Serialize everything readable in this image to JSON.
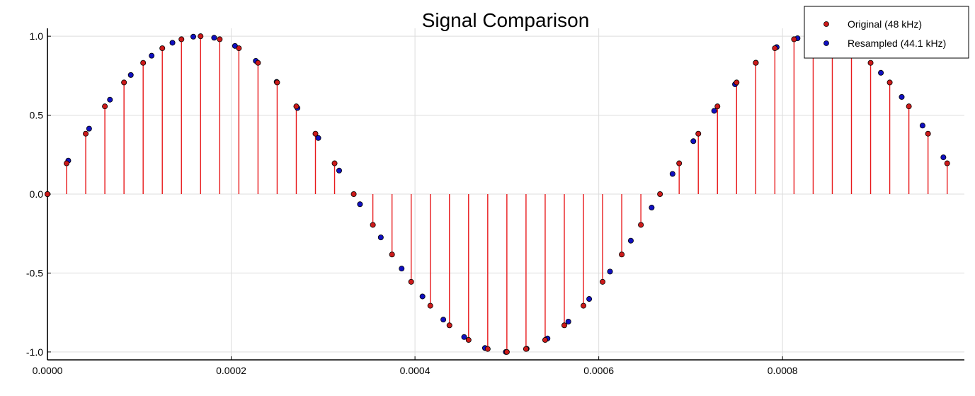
{
  "chart_data": {
    "type": "scatter",
    "title": "Signal Comparison",
    "xlabel": "",
    "ylabel": "",
    "xlim": [
      0,
      0.0009979
    ],
    "ylim": [
      -1.05,
      1.05
    ],
    "x_ticks": [
      0.0,
      0.0002,
      0.0004,
      0.0006,
      0.0008
    ],
    "x_tick_labels": [
      "0.0000",
      "0.0002",
      "0.0004",
      "0.0006",
      "0.0008"
    ],
    "y_ticks": [
      -1.0,
      -0.5,
      0.0,
      0.5,
      1.0
    ],
    "y_tick_labels": [
      "-1.0",
      "-0.5",
      "0.0",
      "0.5",
      "1.0"
    ],
    "grid": true,
    "legend_position": "top-right",
    "signal": {
      "frequency_hz": 1500,
      "waveform": "sine",
      "amplitude": 1.0
    },
    "series": [
      {
        "name": "Original (48 kHz)",
        "sample_rate_hz": 48000,
        "count": 48,
        "style": "stem",
        "color": "#e8191b",
        "marker_color": "#cc1a1a"
      },
      {
        "name": "Resampled (44.1 kHz)",
        "sample_rate_hz": 44100,
        "count": 44,
        "style": "markers",
        "marker_color": "#1010c0"
      }
    ]
  }
}
